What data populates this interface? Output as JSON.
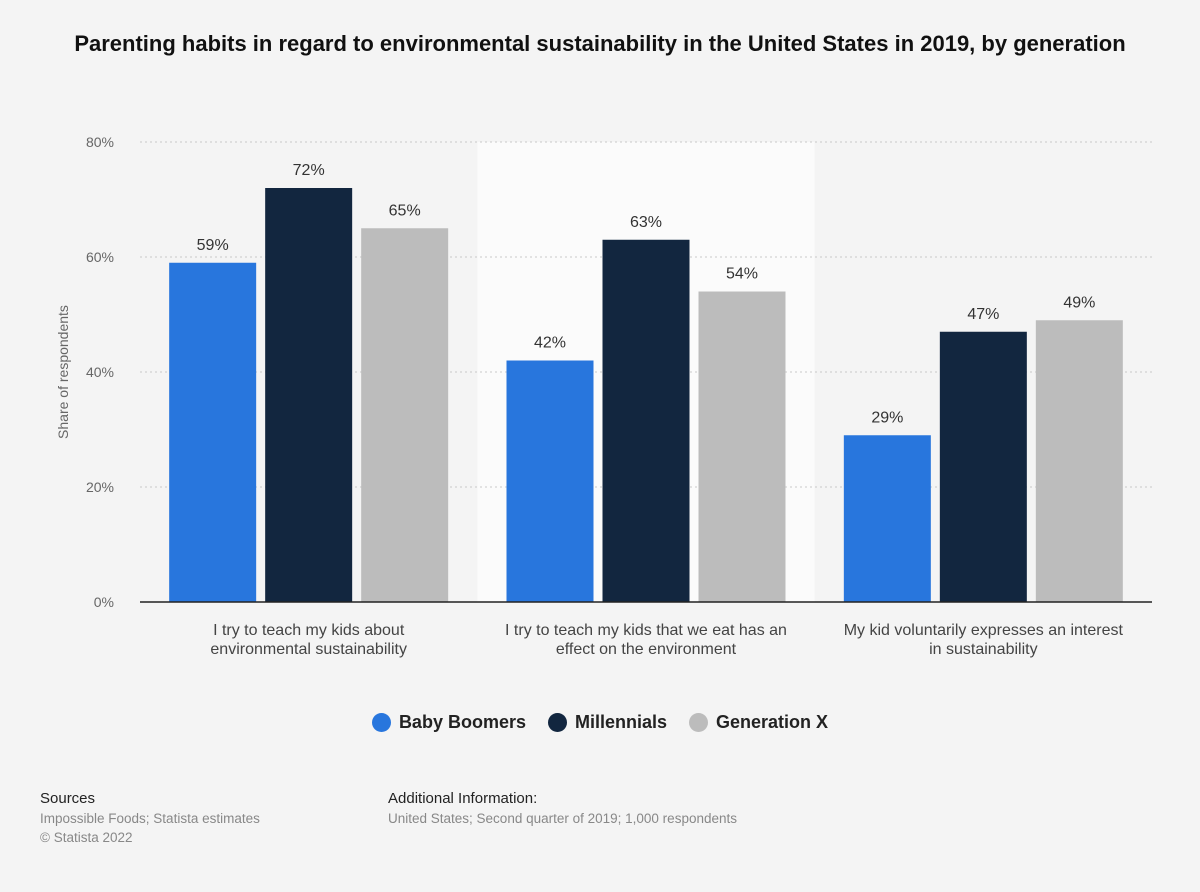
{
  "colors": {
    "baby_boomers": "#2876dd",
    "millennials": "#12263f",
    "generation_x": "#bcbcbc",
    "highlight_band": "#fbfbfb"
  },
  "chart_data": {
    "type": "bar",
    "title": "Parenting habits in regard to environmental sustainability in the United States in 2019, by generation",
    "ylabel": "Share of respondents",
    "xlabel": "",
    "ylim": [
      0,
      80
    ],
    "yticks": [
      "0%",
      "20%",
      "40%",
      "60%",
      "80%"
    ],
    "ytick_values": [
      0,
      20,
      40,
      60,
      80
    ],
    "grid": true,
    "legend_position": "bottom-center",
    "categories": [
      "I try to teach my kids about environmental sustainability",
      "I try to teach my kids that we eat has an effect on the environment",
      "My kid voluntarily expresses an interest in sustainability"
    ],
    "category_lines": [
      [
        "I try to teach my kids about",
        "environmental sustainability"
      ],
      [
        "I try to teach my kids that we eat has an",
        "effect on the environment"
      ],
      [
        "My kid voluntarily expresses an interest",
        "in sustainability"
      ]
    ],
    "series": [
      {
        "name": "Baby Boomers",
        "values": [
          59,
          42,
          29
        ],
        "labels": [
          "59%",
          "42%",
          "29%"
        ]
      },
      {
        "name": "Millennials",
        "values": [
          72,
          63,
          47
        ],
        "labels": [
          "72%",
          "63%",
          "47%"
        ]
      },
      {
        "name": "Generation X",
        "values": [
          65,
          54,
          49
        ],
        "labels": [
          "65%",
          "54%",
          "49%"
        ]
      }
    ]
  },
  "footer": {
    "sources_heading": "Sources",
    "sources_line1": "Impossible Foods; Statista estimates",
    "sources_line2": "© Statista 2022",
    "additional_heading": "Additional Information:",
    "additional_text": "United States; Second quarter of 2019; 1,000 respondents"
  }
}
